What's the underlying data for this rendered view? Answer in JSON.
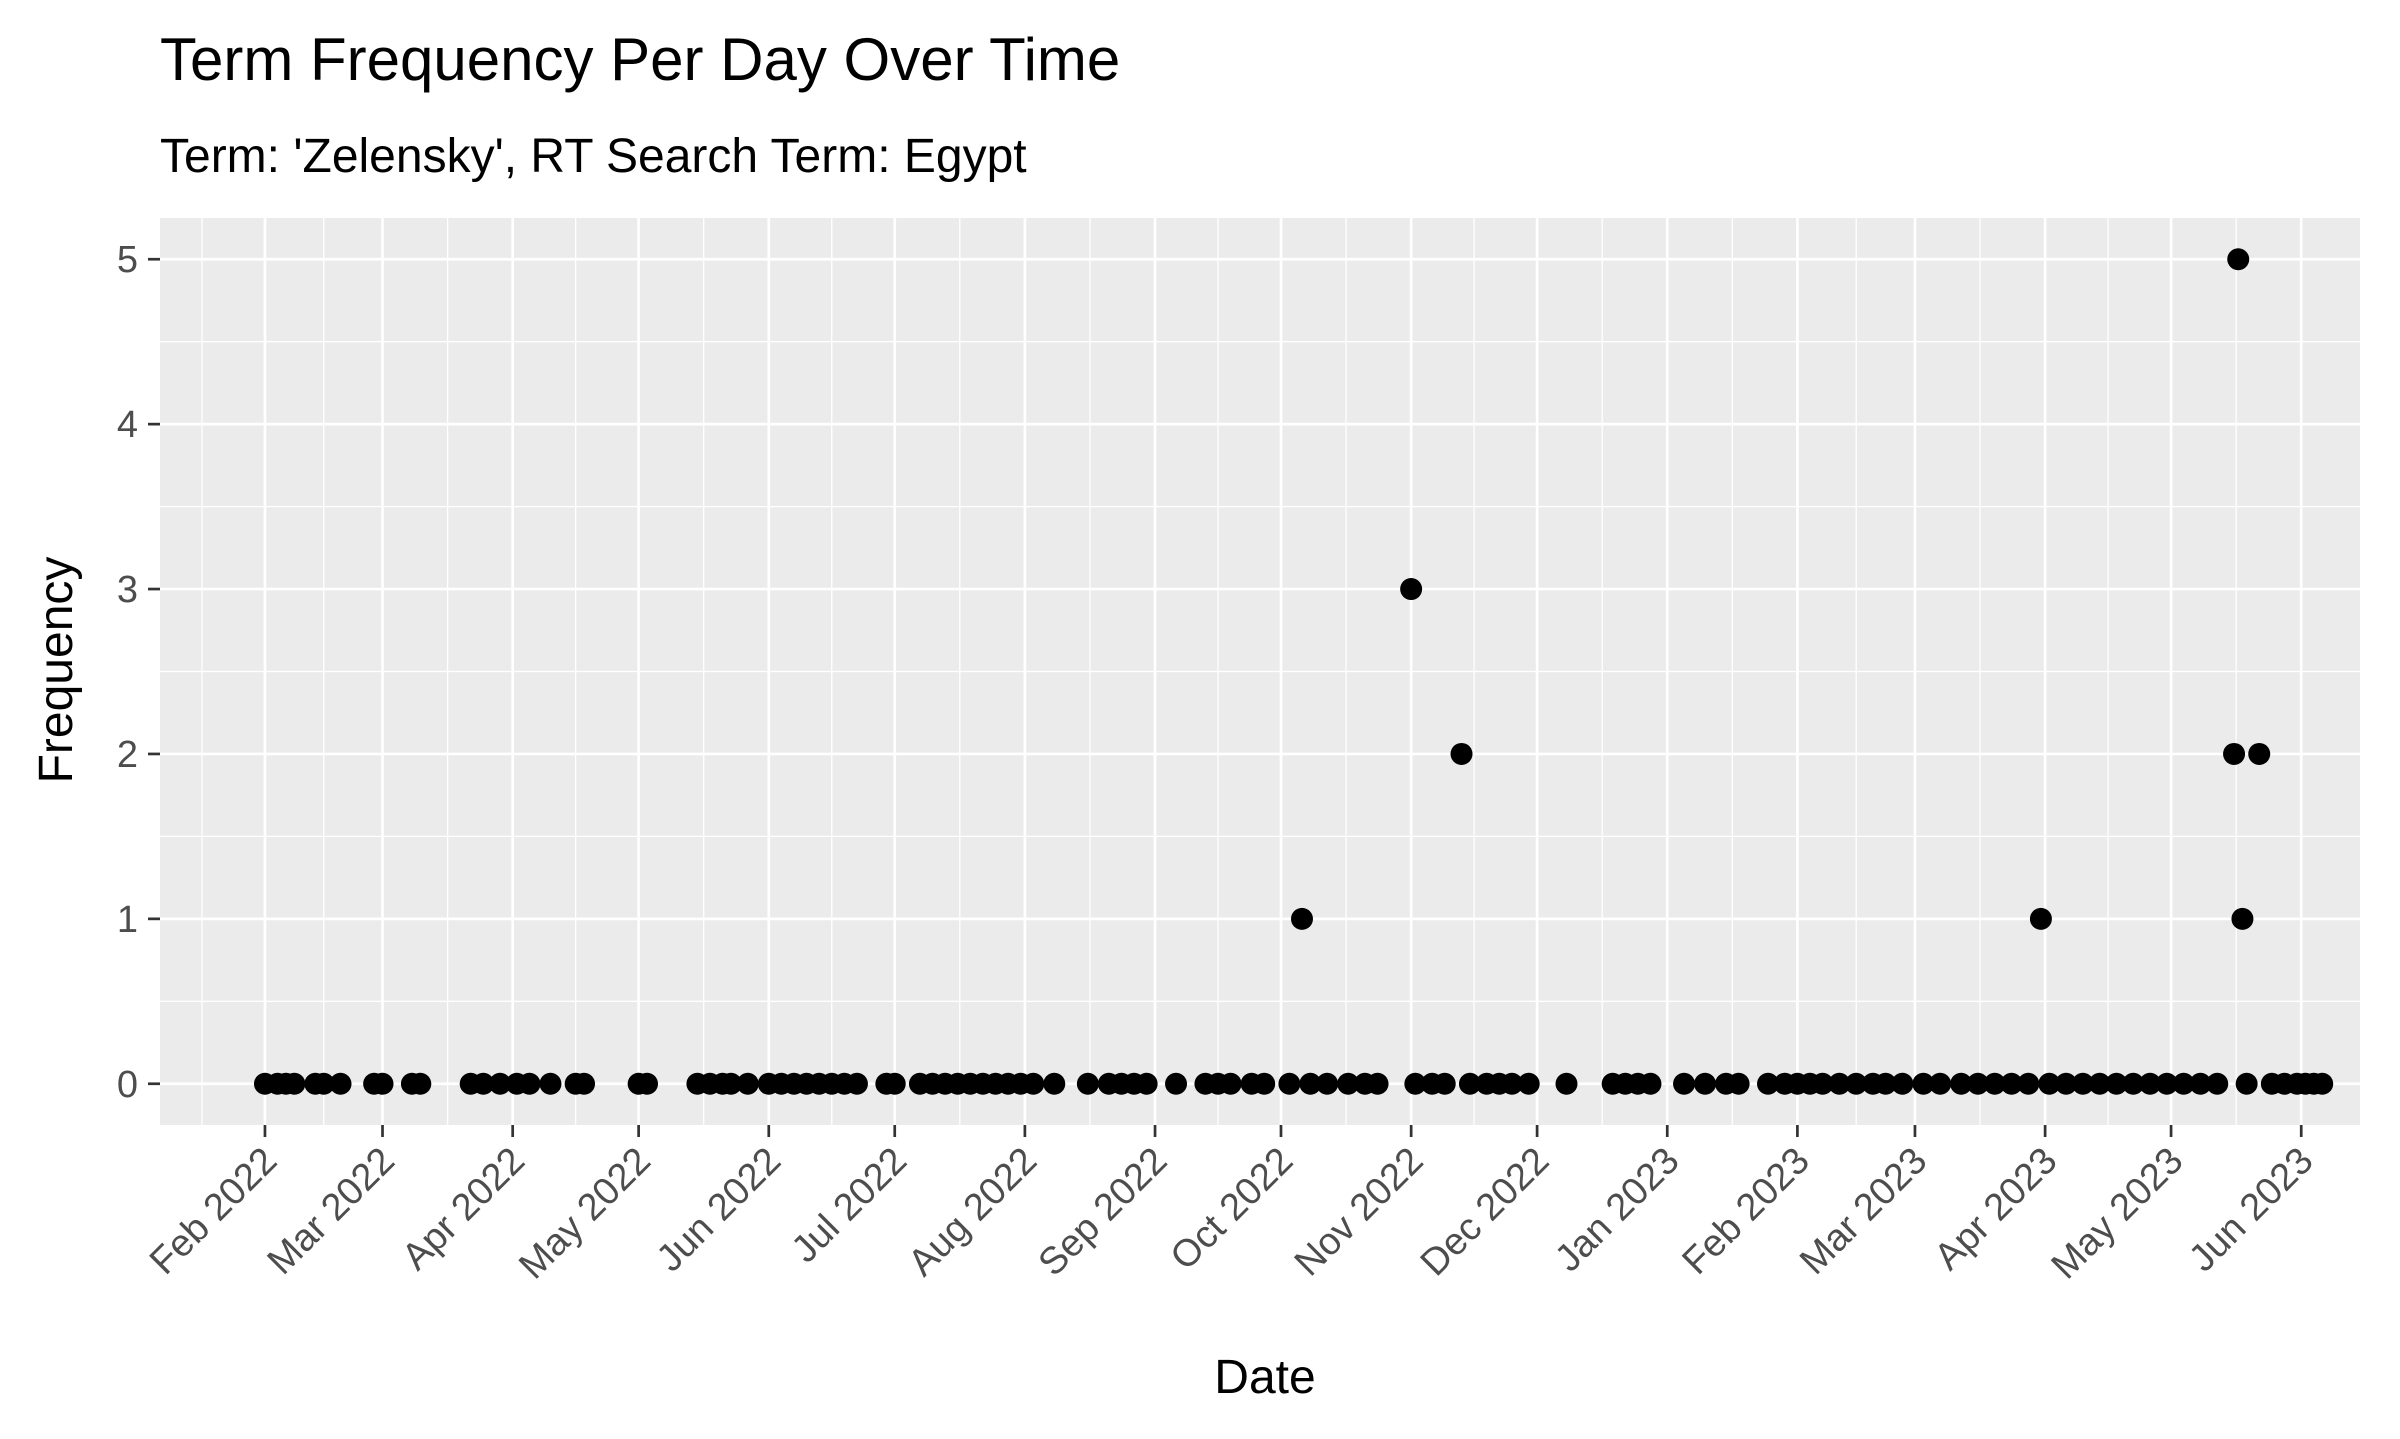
{
  "chart_data": {
    "type": "scatter",
    "title": "Term Frequency Per Day Over Time",
    "subtitle": "Term: 'Zelensky', RT Search Term: Egypt",
    "xlabel": "Date",
    "ylabel": "Frequency",
    "x_ticks": [
      "2022-02-01",
      "2022-03-01",
      "2022-04-01",
      "2022-05-01",
      "2022-06-01",
      "2022-07-01",
      "2022-08-01",
      "2022-09-01",
      "2022-10-01",
      "2022-11-01",
      "2022-12-01",
      "2023-01-01",
      "2023-02-01",
      "2023-03-01",
      "2023-04-01",
      "2023-05-01",
      "2023-06-01"
    ],
    "x_tick_labels": [
      "Feb 2022",
      "Mar 2022",
      "Apr 2022",
      "May 2022",
      "Jun 2022",
      "Jul 2022",
      "Aug 2022",
      "Sep 2022",
      "Oct 2022",
      "Nov 2022",
      "Dec 2022",
      "Jan 2023",
      "Feb 2023",
      "Mar 2023",
      "Apr 2023",
      "May 2023",
      "Jun 2023"
    ],
    "y_ticks": [
      0,
      1,
      2,
      3,
      4,
      5
    ],
    "xlim": [
      "2022-01-07",
      "2023-06-15"
    ],
    "ylim": [
      -0.25,
      5.25
    ],
    "grid": true,
    "point_color": "#000000",
    "panel_color": "#ebebeb",
    "grid_color": "#ffffff",
    "points": [
      {
        "x": "2022-02-01",
        "y": 0
      },
      {
        "x": "2022-02-04",
        "y": 0
      },
      {
        "x": "2022-02-06",
        "y": 0
      },
      {
        "x": "2022-02-08",
        "y": 0
      },
      {
        "x": "2022-02-13",
        "y": 0
      },
      {
        "x": "2022-02-15",
        "y": 0
      },
      {
        "x": "2022-02-19",
        "y": 0
      },
      {
        "x": "2022-02-27",
        "y": 0
      },
      {
        "x": "2022-03-01",
        "y": 0
      },
      {
        "x": "2022-03-08",
        "y": 0
      },
      {
        "x": "2022-03-10",
        "y": 0
      },
      {
        "x": "2022-03-22",
        "y": 0
      },
      {
        "x": "2022-03-25",
        "y": 0
      },
      {
        "x": "2022-03-29",
        "y": 0
      },
      {
        "x": "2022-04-02",
        "y": 0
      },
      {
        "x": "2022-04-05",
        "y": 0
      },
      {
        "x": "2022-04-10",
        "y": 0
      },
      {
        "x": "2022-04-16",
        "y": 0
      },
      {
        "x": "2022-04-18",
        "y": 0
      },
      {
        "x": "2022-05-01",
        "y": 0
      },
      {
        "x": "2022-05-03",
        "y": 0
      },
      {
        "x": "2022-05-15",
        "y": 0
      },
      {
        "x": "2022-05-18",
        "y": 0
      },
      {
        "x": "2022-05-21",
        "y": 0
      },
      {
        "x": "2022-05-23",
        "y": 0
      },
      {
        "x": "2022-05-27",
        "y": 0
      },
      {
        "x": "2022-06-01",
        "y": 0
      },
      {
        "x": "2022-06-04",
        "y": 0
      },
      {
        "x": "2022-06-07",
        "y": 0
      },
      {
        "x": "2022-06-10",
        "y": 0
      },
      {
        "x": "2022-06-13",
        "y": 0
      },
      {
        "x": "2022-06-16",
        "y": 0
      },
      {
        "x": "2022-06-19",
        "y": 0
      },
      {
        "x": "2022-06-22",
        "y": 0
      },
      {
        "x": "2022-06-29",
        "y": 0
      },
      {
        "x": "2022-07-01",
        "y": 0
      },
      {
        "x": "2022-07-07",
        "y": 0
      },
      {
        "x": "2022-07-10",
        "y": 0
      },
      {
        "x": "2022-07-13",
        "y": 0
      },
      {
        "x": "2022-07-16",
        "y": 0
      },
      {
        "x": "2022-07-19",
        "y": 0
      },
      {
        "x": "2022-07-22",
        "y": 0
      },
      {
        "x": "2022-07-25",
        "y": 0
      },
      {
        "x": "2022-07-28",
        "y": 0
      },
      {
        "x": "2022-07-31",
        "y": 0
      },
      {
        "x": "2022-08-03",
        "y": 0
      },
      {
        "x": "2022-08-08",
        "y": 0
      },
      {
        "x": "2022-08-16",
        "y": 0
      },
      {
        "x": "2022-08-21",
        "y": 0
      },
      {
        "x": "2022-08-24",
        "y": 0
      },
      {
        "x": "2022-08-27",
        "y": 0
      },
      {
        "x": "2022-08-30",
        "y": 0
      },
      {
        "x": "2022-09-06",
        "y": 0
      },
      {
        "x": "2022-09-13",
        "y": 0
      },
      {
        "x": "2022-09-16",
        "y": 0
      },
      {
        "x": "2022-09-19",
        "y": 0
      },
      {
        "x": "2022-09-24",
        "y": 0
      },
      {
        "x": "2022-09-27",
        "y": 0
      },
      {
        "x": "2022-10-06",
        "y": 1
      },
      {
        "x": "2022-10-03",
        "y": 0
      },
      {
        "x": "2022-10-08",
        "y": 0
      },
      {
        "x": "2022-10-12",
        "y": 0
      },
      {
        "x": "2022-10-17",
        "y": 0
      },
      {
        "x": "2022-10-21",
        "y": 0
      },
      {
        "x": "2022-10-24",
        "y": 0
      },
      {
        "x": "2022-11-01",
        "y": 3
      },
      {
        "x": "2022-11-02",
        "y": 0
      },
      {
        "x": "2022-11-06",
        "y": 0
      },
      {
        "x": "2022-11-09",
        "y": 0
      },
      {
        "x": "2022-11-13",
        "y": 2
      },
      {
        "x": "2022-11-15",
        "y": 0
      },
      {
        "x": "2022-11-19",
        "y": 0
      },
      {
        "x": "2022-11-22",
        "y": 0
      },
      {
        "x": "2022-11-25",
        "y": 0
      },
      {
        "x": "2022-11-29",
        "y": 0
      },
      {
        "x": "2022-12-08",
        "y": 0
      },
      {
        "x": "2022-12-19",
        "y": 0
      },
      {
        "x": "2022-12-22",
        "y": 0
      },
      {
        "x": "2022-12-25",
        "y": 0
      },
      {
        "x": "2022-12-28",
        "y": 0
      },
      {
        "x": "2023-01-05",
        "y": 0
      },
      {
        "x": "2023-01-10",
        "y": 0
      },
      {
        "x": "2023-01-15",
        "y": 0
      },
      {
        "x": "2023-01-18",
        "y": 0
      },
      {
        "x": "2023-01-25",
        "y": 0
      },
      {
        "x": "2023-01-29",
        "y": 0
      },
      {
        "x": "2023-02-01",
        "y": 0
      },
      {
        "x": "2023-02-04",
        "y": 0
      },
      {
        "x": "2023-02-07",
        "y": 0
      },
      {
        "x": "2023-02-11",
        "y": 0
      },
      {
        "x": "2023-02-15",
        "y": 0
      },
      {
        "x": "2023-02-19",
        "y": 0
      },
      {
        "x": "2023-02-22",
        "y": 0
      },
      {
        "x": "2023-02-26",
        "y": 0
      },
      {
        "x": "2023-03-03",
        "y": 0
      },
      {
        "x": "2023-03-07",
        "y": 0
      },
      {
        "x": "2023-03-12",
        "y": 0
      },
      {
        "x": "2023-03-16",
        "y": 0
      },
      {
        "x": "2023-03-20",
        "y": 0
      },
      {
        "x": "2023-03-24",
        "y": 0
      },
      {
        "x": "2023-03-28",
        "y": 0
      },
      {
        "x": "2023-03-31",
        "y": 1
      },
      {
        "x": "2023-04-02",
        "y": 0
      },
      {
        "x": "2023-04-06",
        "y": 0
      },
      {
        "x": "2023-04-10",
        "y": 0
      },
      {
        "x": "2023-04-14",
        "y": 0
      },
      {
        "x": "2023-04-18",
        "y": 0
      },
      {
        "x": "2023-04-22",
        "y": 0
      },
      {
        "x": "2023-04-26",
        "y": 0
      },
      {
        "x": "2023-04-30",
        "y": 0
      },
      {
        "x": "2023-05-04",
        "y": 0
      },
      {
        "x": "2023-05-08",
        "y": 0
      },
      {
        "x": "2023-05-12",
        "y": 0
      },
      {
        "x": "2023-05-16",
        "y": 2
      },
      {
        "x": "2023-05-17",
        "y": 5
      },
      {
        "x": "2023-05-18",
        "y": 1
      },
      {
        "x": "2023-05-19",
        "y": 0
      },
      {
        "x": "2023-05-22",
        "y": 2
      },
      {
        "x": "2023-05-25",
        "y": 0
      },
      {
        "x": "2023-05-28",
        "y": 0
      },
      {
        "x": "2023-05-31",
        "y": 0
      },
      {
        "x": "2023-06-02",
        "y": 0
      },
      {
        "x": "2023-06-04",
        "y": 0
      },
      {
        "x": "2023-06-06",
        "y": 0
      }
    ]
  }
}
